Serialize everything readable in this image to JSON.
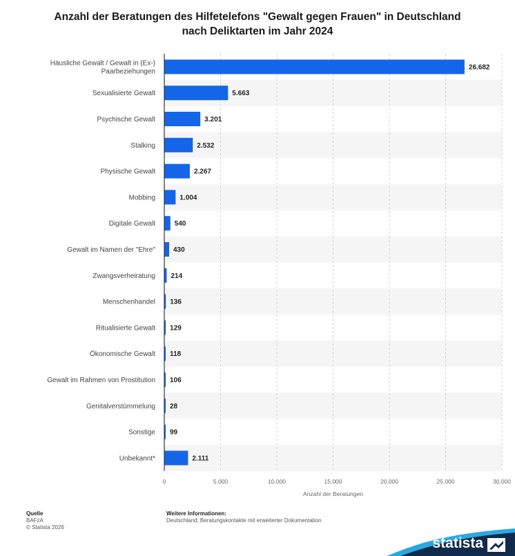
{
  "title_line1": "Anzahl der Beratungen des Hilfetelefons \"Gewalt gegen Frauen\" in Deutschland",
  "title_line2": "nach Deliktarten im Jahr 2024",
  "footer": {
    "source_head": "Quelle",
    "source": "BAFzA",
    "copyright": "© Statista 2026",
    "info_head": "Weitere Informationen:",
    "info": "Deutschland; Beratungskontakte mit erweiterter Dokumentation"
  },
  "logo": {
    "text": "statista",
    "icon": "statista-logo-icon"
  },
  "colors": {
    "bar": "#1565e8",
    "stripe": "#f5f5f5",
    "grid": "#d0d0d0",
    "axis": "#333333",
    "logo_bg": "#102a4c",
    "logo_wave": "#2aa9e0"
  },
  "chart_data": {
    "type": "bar",
    "orientation": "horizontal",
    "categories": [
      [
        "Häusliche Gewalt / Gewalt in (Ex-)",
        "Paarbeziehungen"
      ],
      [
        "Sexualisierte Gewalt"
      ],
      [
        "Psychische Gewalt"
      ],
      [
        "Stalking"
      ],
      [
        "Physische Gewalt"
      ],
      [
        "Mobbing"
      ],
      [
        "Digitale Gewalt"
      ],
      [
        "Gewalt im Namen der \"Ehre\""
      ],
      [
        "Zwangsverheiratung"
      ],
      [
        "Menschenhandel"
      ],
      [
        "Ritualisierte Gewalt"
      ],
      [
        "Ökonomische Gewalt"
      ],
      [
        "Gewalt im Rahmen von Prostitution"
      ],
      [
        "Genitalverstümmelung"
      ],
      [
        "Sonstige"
      ],
      [
        "Unbekannt*"
      ]
    ],
    "values": [
      26682,
      5663,
      3201,
      2532,
      2267,
      1004,
      540,
      430,
      214,
      136,
      129,
      118,
      106,
      28,
      99,
      2111
    ],
    "value_labels": [
      "26.682",
      "5.663",
      "3.201",
      "2.532",
      "2.267",
      "1.004",
      "540",
      "430",
      "214",
      "136",
      "129",
      "118",
      "106",
      "28",
      "99",
      "2.111"
    ],
    "xlim": [
      0,
      30000
    ],
    "xticks": [
      0,
      5000,
      10000,
      15000,
      20000,
      25000,
      30000
    ],
    "xtick_labels": [
      "0",
      "5.000",
      "10.000",
      "15.000",
      "20.000",
      "25.000",
      "30.000"
    ],
    "xlabel": "Anzahl der Beratungen",
    "grid": "vertical dashed",
    "legend": "none"
  }
}
